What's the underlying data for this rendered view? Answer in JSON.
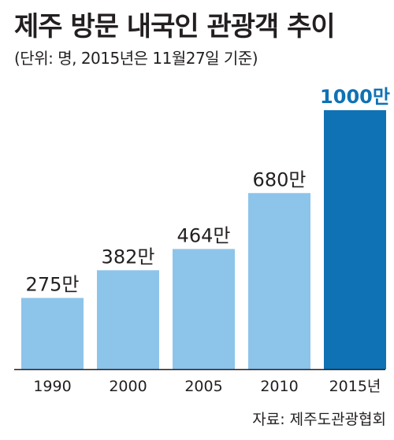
{
  "chart_data": {
    "type": "bar",
    "title": "제주 방문 내국인 관광객 추이",
    "subtitle": "(단위: 명, 2015년은 11월27일 기준)",
    "source": "자료: 제주도관광협회",
    "categories": [
      "1990",
      "2000",
      "2005",
      "2010",
      "2015년"
    ],
    "values": [
      275,
      382,
      464,
      680,
      1000
    ],
    "value_labels": [
      "275만",
      "382만",
      "464만",
      "680만",
      "1000만"
    ],
    "value_unit": "만",
    "ylim": [
      0,
      1000
    ],
    "grid": false,
    "legend": "none",
    "colors": {
      "bar": "#8dc4ea",
      "highlight_bar": "#0f72b4",
      "highlight_label": "#0f72b4",
      "text": "#231f20",
      "baseline": "#231f20"
    },
    "highlight_index": 4
  }
}
